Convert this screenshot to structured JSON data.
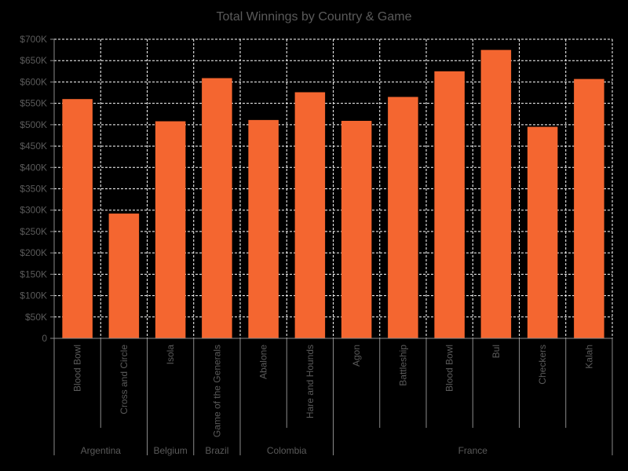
{
  "chart_data": {
    "type": "bar",
    "title": "Total Winnings by Country & Game",
    "xlabel": "",
    "ylabel": "",
    "ylim": [
      0,
      700000
    ],
    "y_ticks": [
      0,
      50000,
      100000,
      150000,
      200000,
      250000,
      300000,
      350000,
      400000,
      450000,
      500000,
      550000,
      600000,
      650000,
      700000
    ],
    "y_tick_labels": [
      "0",
      "$50K",
      "$100K",
      "$150K",
      "$200K",
      "$250K",
      "$300K",
      "$350K",
      "$400K",
      "$450K",
      "$500K",
      "$550K",
      "$600K",
      "$650K",
      "$700K"
    ],
    "grid": true,
    "legend": "none",
    "bar_color": "#f46630",
    "categories": [
      "Blood Bowl",
      "Cross and Circle",
      "Isola",
      "Game of the Generals",
      "Abalone",
      "Hare and Hounds",
      "Agon",
      "Battleship",
      "Blood Bowl",
      "Bul",
      "Checkers",
      "Kalah"
    ],
    "values": [
      560000,
      292000,
      508000,
      609000,
      511000,
      576000,
      509000,
      565000,
      625000,
      675000,
      495000,
      607000
    ],
    "groups": [
      {
        "label": "Argentina",
        "count": 2
      },
      {
        "label": "Belgium",
        "count": 1
      },
      {
        "label": "Brazil",
        "count": 1
      },
      {
        "label": "Colombia",
        "count": 2
      },
      {
        "label": "France",
        "count": 6
      }
    ]
  }
}
